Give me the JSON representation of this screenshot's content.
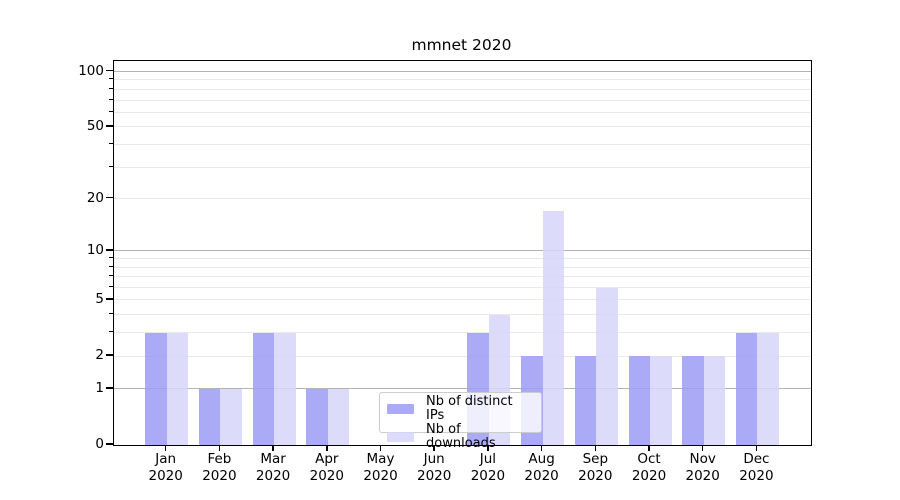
{
  "title": "mmnet 2020",
  "chart_data": {
    "type": "bar",
    "title": "mmnet 2020",
    "categories": [
      "Jan 2020",
      "Feb 2020",
      "Mar 2020",
      "Apr 2020",
      "May 2020",
      "Jun 2020",
      "Jul 2020",
      "Aug 2020",
      "Sep 2020",
      "Oct 2020",
      "Nov 2020",
      "Dec 2020"
    ],
    "series": [
      {
        "name": "Nb of distinct IPs",
        "color": "#9b9bf5",
        "values": [
          3,
          1,
          3,
          1,
          0,
          0,
          3,
          2,
          2,
          2,
          2,
          3
        ]
      },
      {
        "name": "Nb of downloads",
        "color": "#d6d5f8",
        "values": [
          3,
          1,
          3,
          1,
          0,
          0,
          4,
          17,
          6,
          2,
          2,
          3
        ]
      }
    ],
    "xlabel": "",
    "ylabel": "",
    "yscale": "log1p",
    "ylim": [
      0,
      114
    ],
    "yticks": [
      0,
      1,
      2,
      5,
      10,
      20,
      50,
      100
    ],
    "major_gridlines": [
      1,
      10,
      100
    ],
    "minor_gridlines": [
      2,
      3,
      4,
      5,
      6,
      7,
      8,
      9,
      20,
      30,
      40,
      50,
      60,
      70,
      80,
      90
    ],
    "grid": "horizontal",
    "legend_position": "inside-lower-center"
  },
  "legend": {
    "items": [
      {
        "label": "Nb of distinct IPs",
        "color": "#9b9bf5"
      },
      {
        "label": "Nb of downloads",
        "color": "#d6d5f8"
      }
    ]
  },
  "colors": {
    "background": "#ffffff",
    "axis": "#000000",
    "major_grid": "#b3b3b3",
    "minor_grid": "#e9e9e9",
    "bar_distinct_ips_onwhite": "#aaaaf7",
    "bar_downloads_onwhite": "#dcdbf8"
  }
}
